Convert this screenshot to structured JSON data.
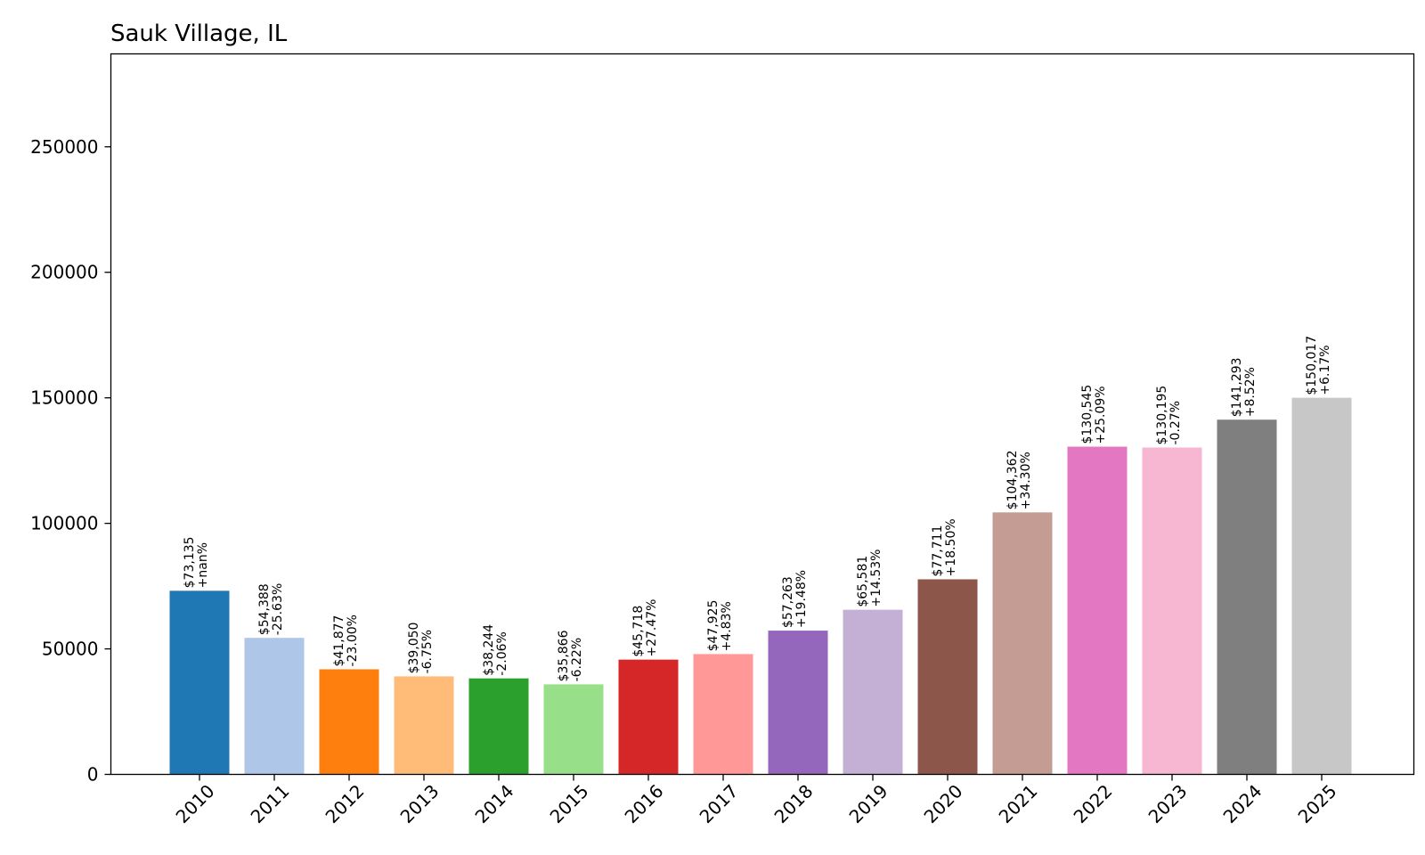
{
  "chart_data": {
    "type": "bar",
    "title": "Sauk Village, IL",
    "xlabel": "",
    "ylabel": "",
    "ylim": [
      0,
      287000
    ],
    "yticks": [
      0,
      50000,
      100000,
      150000,
      200000,
      250000
    ],
    "grid": false,
    "categories": [
      "2010",
      "2011",
      "2012",
      "2013",
      "2014",
      "2015",
      "2016",
      "2017",
      "2018",
      "2019",
      "2020",
      "2021",
      "2022",
      "2023",
      "2024",
      "2025"
    ],
    "values": [
      73135,
      54388,
      41877,
      39050,
      38244,
      35866,
      45718,
      47925,
      57263,
      65581,
      77711,
      104362,
      130545,
      130195,
      141293,
      150017
    ],
    "value_labels": [
      "$73,135",
      "$54,388",
      "$41,877",
      "$39,050",
      "$38,244",
      "$35,866",
      "$45,718",
      "$47,925",
      "$57,263",
      "$65,581",
      "$77,711",
      "$104,362",
      "$130,545",
      "$130,195",
      "$141,293",
      "$150,017"
    ],
    "change_labels": [
      "+nan%",
      "-25.63%",
      "-23.00%",
      "-6.75%",
      "-2.06%",
      "-6.22%",
      "+27.47%",
      "+4.83%",
      "+19.48%",
      "+14.53%",
      "+18.50%",
      "+34.30%",
      "+25.09%",
      "-0.27%",
      "+8.52%",
      "+6.17%"
    ],
    "colors": [
      "#1f77b4",
      "#aec7e8",
      "#ff7f0e",
      "#ffbb78",
      "#2ca02c",
      "#98df8a",
      "#d62728",
      "#ff9896",
      "#9467bd",
      "#c5b0d5",
      "#8c564b",
      "#c49c94",
      "#e377c2",
      "#f7b6d2",
      "#7f7f7f",
      "#c7c7c7"
    ]
  }
}
